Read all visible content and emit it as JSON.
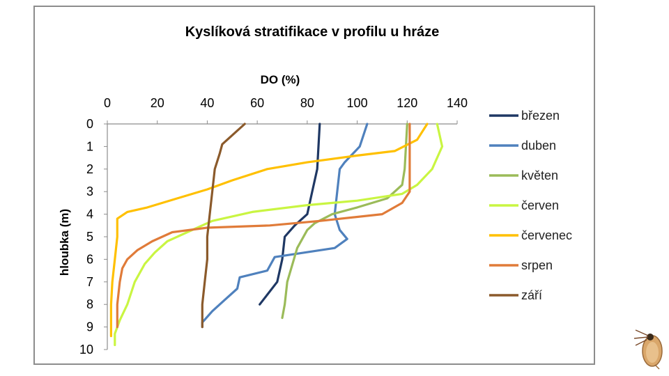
{
  "chart_data": {
    "type": "line",
    "title": "Kyslíková stratifikace v profilu u hráze",
    "xlabel": "DO (%)",
    "ylabel": "hloubka (m)",
    "xlim": [
      0,
      140
    ],
    "ylim": [
      0,
      10
    ],
    "x_ticks": [
      "0",
      "20",
      "40",
      "60",
      "80",
      "100",
      "120",
      "140"
    ],
    "y_ticks": [
      "0",
      "1",
      "2",
      "3",
      "4",
      "5",
      "6",
      "7",
      "8",
      "9",
      "10"
    ],
    "x_axis_position": "top",
    "y_axis_reversed": true,
    "grid": false,
    "legend_position": "right",
    "series": [
      {
        "name": "březen",
        "color": "#1f3864",
        "points": [
          [
            85,
            0
          ],
          [
            84.5,
            1
          ],
          [
            84,
            2
          ],
          [
            82,
            3
          ],
          [
            80,
            4
          ],
          [
            75,
            4.5
          ],
          [
            71,
            5
          ],
          [
            70,
            6
          ],
          [
            68,
            7
          ],
          [
            61,
            8
          ]
        ]
      },
      {
        "name": "duben",
        "color": "#4f81bd",
        "points": [
          [
            104,
            0
          ],
          [
            101,
            1
          ],
          [
            95,
            1.7
          ],
          [
            93,
            2
          ],
          [
            92,
            3
          ],
          [
            91,
            4
          ],
          [
            93,
            4.7
          ],
          [
            96,
            5.1
          ],
          [
            91,
            5.5
          ],
          [
            67,
            5.9
          ],
          [
            64,
            6.5
          ],
          [
            53,
            6.8
          ],
          [
            52,
            7.3
          ],
          [
            47,
            7.8
          ],
          [
            42,
            8.3
          ],
          [
            38,
            8.8
          ],
          [
            38,
            9
          ]
        ]
      },
      {
        "name": "květen",
        "color": "#9bbb59",
        "points": [
          [
            120,
            0
          ],
          [
            119.5,
            1
          ],
          [
            119,
            2
          ],
          [
            118,
            2.7
          ],
          [
            112,
            3.3
          ],
          [
            100,
            3.7
          ],
          [
            90,
            4
          ],
          [
            83,
            4.4
          ],
          [
            80,
            4.7
          ],
          [
            76,
            5.5
          ],
          [
            72,
            7
          ],
          [
            71,
            8
          ],
          [
            70,
            8.6
          ]
        ]
      },
      {
        "name": "červen",
        "color": "#c9f542",
        "points": [
          [
            132,
            0
          ],
          [
            134,
            1
          ],
          [
            130,
            2
          ],
          [
            124,
            2.7
          ],
          [
            118,
            3.1
          ],
          [
            100,
            3.4
          ],
          [
            80,
            3.6
          ],
          [
            58,
            3.9
          ],
          [
            42,
            4.3
          ],
          [
            32,
            4.8
          ],
          [
            24,
            5.2
          ],
          [
            19,
            5.7
          ],
          [
            15,
            6.2
          ],
          [
            11,
            7
          ],
          [
            8,
            8
          ],
          [
            5,
            8.7
          ],
          [
            3,
            9.3
          ],
          [
            3,
            9.8
          ]
        ]
      },
      {
        "name": "červenec",
        "color": "#ffc000",
        "points": [
          [
            128,
            0
          ],
          [
            124,
            0.7
          ],
          [
            115,
            1.2
          ],
          [
            100,
            1.4
          ],
          [
            80,
            1.7
          ],
          [
            64,
            2
          ],
          [
            50,
            2.5
          ],
          [
            40,
            2.9
          ],
          [
            28,
            3.3
          ],
          [
            16,
            3.7
          ],
          [
            8,
            3.9
          ],
          [
            4,
            4.2
          ],
          [
            4,
            5
          ],
          [
            3,
            6
          ],
          [
            2,
            7
          ],
          [
            1.5,
            8
          ],
          [
            1.5,
            9.4
          ]
        ]
      },
      {
        "name": "srpen",
        "color": "#e07b39",
        "points": [
          [
            121,
            0
          ],
          [
            121,
            1
          ],
          [
            121,
            2
          ],
          [
            121,
            3
          ],
          [
            118,
            3.5
          ],
          [
            110,
            4
          ],
          [
            85,
            4.3
          ],
          [
            65,
            4.5
          ],
          [
            40,
            4.6
          ],
          [
            26,
            4.8
          ],
          [
            18,
            5.2
          ],
          [
            12,
            5.6
          ],
          [
            8,
            6
          ],
          [
            6,
            6.4
          ],
          [
            5,
            7
          ],
          [
            4,
            8
          ],
          [
            4,
            9
          ]
        ]
      },
      {
        "name": "září",
        "color": "#8b5a2b",
        "points": [
          [
            55,
            0
          ],
          [
            50,
            0.5
          ],
          [
            46,
            0.9
          ],
          [
            45,
            1.3
          ],
          [
            43,
            2
          ],
          [
            42,
            3
          ],
          [
            41,
            4
          ],
          [
            40,
            5
          ],
          [
            40,
            6
          ],
          [
            39,
            7
          ],
          [
            38,
            8
          ],
          [
            38,
            9
          ]
        ]
      }
    ]
  },
  "decoration": {
    "water_flea_icon": "water-flea-icon"
  }
}
